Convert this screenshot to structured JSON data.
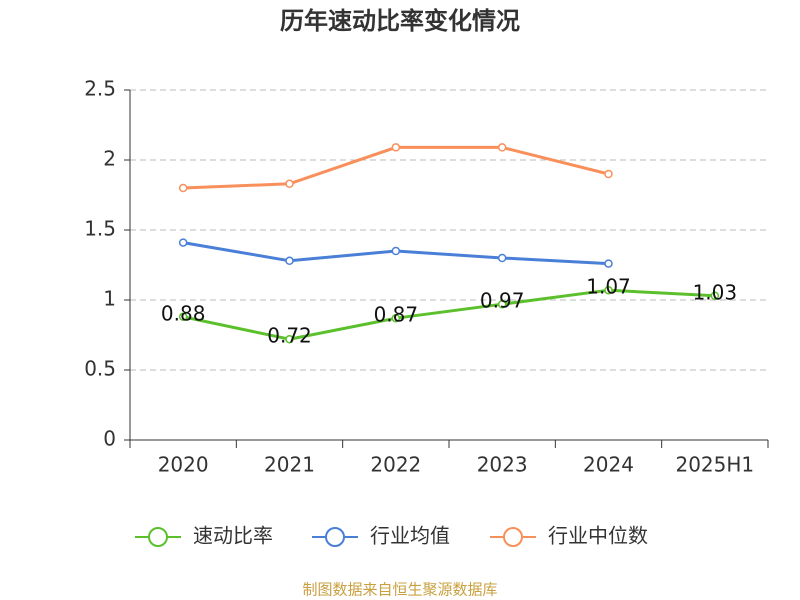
{
  "chart_data": {
    "type": "line",
    "title": "历年速动比率变化情况",
    "categories": [
      "2020",
      "2021",
      "2022",
      "2023",
      "2024",
      "2025H1"
    ],
    "series": [
      {
        "name": "速动比率",
        "color": "#5cc02c",
        "values": [
          0.88,
          0.72,
          0.87,
          0.97,
          1.07,
          1.03
        ],
        "data_labels": true
      },
      {
        "name": "行业均值",
        "color": "#4a7fd8",
        "values": [
          1.41,
          1.28,
          1.35,
          1.3,
          1.26,
          null
        ]
      },
      {
        "name": "行业中位数",
        "color": "#f98f5b",
        "values": [
          1.8,
          1.83,
          2.09,
          2.09,
          1.9,
          null
        ]
      }
    ],
    "ylim": [
      0,
      2.5
    ],
    "yticks": [
      0,
      0.5,
      1,
      1.5,
      2,
      2.5
    ],
    "grid": true,
    "legend": "bottom",
    "source": "制图数据来自恒生聚源数据库"
  }
}
